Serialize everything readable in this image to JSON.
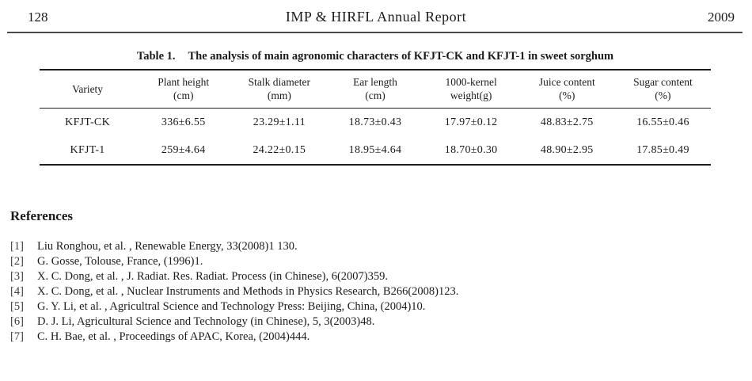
{
  "page_header": {
    "page_number": "128",
    "title": "IMP & HIRFL Annual Report",
    "year": "2009"
  },
  "table": {
    "caption_label": "Table 1.",
    "caption_text": "The analysis of main agronomic characters of KFJT-CK and KFJT-1 in sweet sorghum",
    "columns": [
      {
        "label": "Variety",
        "unit": ""
      },
      {
        "label": "Plant height",
        "unit": "(cm)"
      },
      {
        "label": "Stalk diameter",
        "unit": "(mm)"
      },
      {
        "label": "Ear length",
        "unit": "(cm)"
      },
      {
        "label": "1000-kernel",
        "unit": "weight(g)"
      },
      {
        "label": "Juice content",
        "unit": "(%)"
      },
      {
        "label": "Sugar content",
        "unit": "(%)"
      }
    ],
    "rows": [
      {
        "variety": "KFJT-CK",
        "values": [
          "336±6.55",
          "23.29±1.11",
          "18.73±0.43",
          "17.97±0.12",
          "48.83±2.75",
          "16.55±0.46"
        ]
      },
      {
        "variety": "KFJT-1",
        "values": [
          "259±4.64",
          "24.22±0.15",
          "18.95±4.64",
          "18.70±0.30",
          "48.90±2.95",
          "17.85±0.49"
        ]
      }
    ]
  },
  "references": {
    "heading": "References",
    "items": [
      {
        "label": "[1]",
        "text": "Liu Ronghou, et al. , Renewable Energy, 33(2008)1 130."
      },
      {
        "label": "[2]",
        "text": "G. Gosse, Tolouse, France, (1996)1."
      },
      {
        "label": "[3]",
        "text": "X. C. Dong, et al. , J. Radiat. Res. Radiat. Process (in Chinese), 6(2007)359."
      },
      {
        "label": "[4]",
        "text": "X. C. Dong, et al. , Nuclear Instruments and Methods in Physics Research, B266(2008)123."
      },
      {
        "label": "[5]",
        "text": "G. Y. Li, et al. , Agricultral Science and Technology Press: Beijing, China, (2004)10."
      },
      {
        "label": "[6]",
        "text": "D. J. Li, Agricultural Science and Technology (in Chinese), 5, 3(2003)48."
      },
      {
        "label": "[7]",
        "text": "C. H. Bae, et al. , Proceedings of APAC, Korea, (2004)444."
      }
    ]
  }
}
